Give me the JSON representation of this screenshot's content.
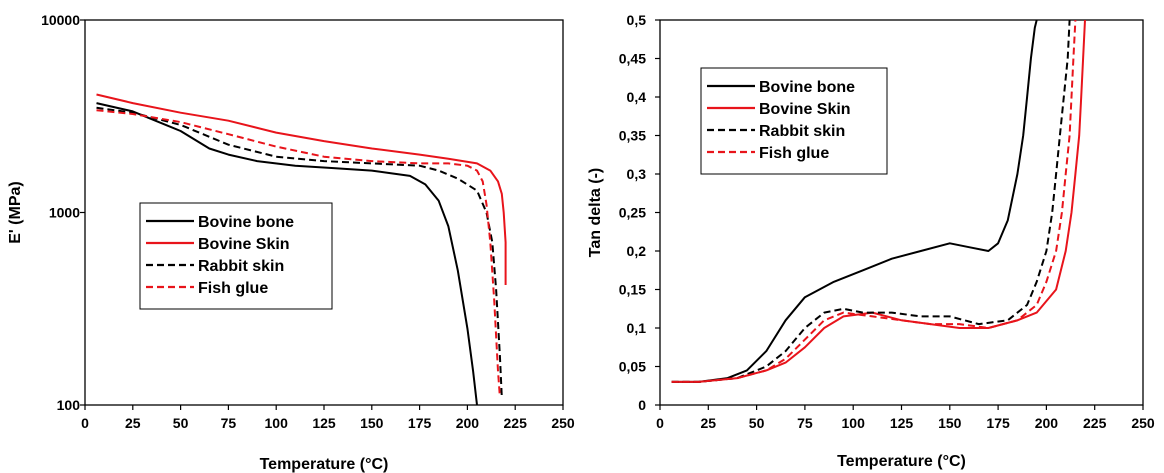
{
  "colors": {
    "black": "#000000",
    "red": "#e8141b"
  },
  "chart_data": [
    {
      "type": "line",
      "xlabel": "Temperature (°C)",
      "ylabel": "E' (MPa)",
      "yscale": "log",
      "xlim": [
        0,
        250
      ],
      "ylim": [
        100,
        10000
      ],
      "xticks": [
        0,
        25,
        50,
        75,
        100,
        125,
        150,
        175,
        200,
        225,
        250
      ],
      "xtick_labels": [
        "0",
        "25",
        "50",
        "75",
        "100",
        "125",
        "150",
        "175",
        "200",
        "225",
        "250"
      ],
      "yticks": [
        100,
        1000,
        10000
      ],
      "ytick_labels": [
        "100",
        "1000",
        "10000"
      ],
      "grid": false,
      "legend_position": "lower-left",
      "series": [
        {
          "name": "Bovine bone",
          "color": "#000000",
          "dash": "solid",
          "x": [
            6,
            25,
            50,
            65,
            75,
            90,
            110,
            130,
            150,
            160,
            170,
            178,
            185,
            190,
            195,
            200,
            203,
            205
          ],
          "y": [
            3700,
            3350,
            2650,
            2150,
            2000,
            1850,
            1750,
            1700,
            1650,
            1600,
            1550,
            1400,
            1150,
            850,
            500,
            250,
            150,
            100
          ]
        },
        {
          "name": "Bovine Skin",
          "color": "#e8141b",
          "dash": "solid",
          "x": [
            6,
            25,
            50,
            75,
            100,
            125,
            150,
            175,
            190,
            205,
            212,
            216,
            218,
            219,
            220,
            220
          ],
          "y": [
            4100,
            3700,
            3300,
            3000,
            2600,
            2350,
            2150,
            2000,
            1900,
            1800,
            1650,
            1450,
            1250,
            1000,
            700,
            420
          ]
        },
        {
          "name": "Rabbit skin",
          "color": "#000000",
          "dash": "dashed",
          "x": [
            6,
            25,
            50,
            75,
            100,
            125,
            150,
            175,
            185,
            195,
            205,
            210,
            213,
            215,
            217,
            218
          ],
          "y": [
            3500,
            3300,
            2850,
            2250,
            1950,
            1850,
            1800,
            1750,
            1650,
            1500,
            1300,
            1000,
            700,
            400,
            180,
            110
          ]
        },
        {
          "name": "Fish glue",
          "color": "#e8141b",
          "dash": "dashed",
          "x": [
            6,
            25,
            50,
            75,
            100,
            125,
            150,
            175,
            190,
            200,
            205,
            208,
            210,
            212,
            214,
            216,
            217
          ],
          "y": [
            3400,
            3250,
            2950,
            2550,
            2200,
            1950,
            1850,
            1800,
            1800,
            1750,
            1650,
            1450,
            1100,
            700,
            350,
            150,
            110
          ]
        }
      ]
    },
    {
      "type": "line",
      "xlabel": "Temperature (°C)",
      "ylabel": "Tan delta (-)",
      "xlim": [
        0,
        250
      ],
      "ylim": [
        0,
        0.5
      ],
      "xticks": [
        0,
        25,
        50,
        75,
        100,
        125,
        150,
        175,
        200,
        225,
        250
      ],
      "xtick_labels": [
        "0",
        "25",
        "50",
        "75",
        "100",
        "125",
        "150",
        "175",
        "200",
        "225",
        "250"
      ],
      "yticks": [
        0,
        0.05,
        0.1,
        0.15,
        0.2,
        0.25,
        0.3,
        0.35,
        0.4,
        0.45,
        0.5
      ],
      "ytick_labels": [
        "0",
        "0,05",
        "0,1",
        "0,15",
        "0,2",
        "0,25",
        "0,3",
        "0,35",
        "0,4",
        "0,45",
        "0,5"
      ],
      "grid": false,
      "legend_position": "top-left",
      "series": [
        {
          "name": "Bovine bone",
          "color": "#000000",
          "dash": "solid",
          "x": [
            6,
            20,
            35,
            45,
            55,
            65,
            75,
            90,
            105,
            120,
            135,
            150,
            160,
            170,
            175,
            180,
            185,
            188,
            190,
            192,
            194,
            195
          ],
          "y": [
            0.03,
            0.03,
            0.035,
            0.045,
            0.07,
            0.11,
            0.14,
            0.16,
            0.175,
            0.19,
            0.2,
            0.21,
            0.205,
            0.2,
            0.21,
            0.24,
            0.3,
            0.35,
            0.4,
            0.45,
            0.49,
            0.5
          ]
        },
        {
          "name": "Bovine Skin",
          "color": "#e8141b",
          "dash": "solid",
          "x": [
            6,
            20,
            40,
            55,
            65,
            75,
            85,
            95,
            110,
            125,
            140,
            155,
            170,
            185,
            195,
            205,
            210,
            213,
            215,
            217,
            218,
            219,
            220
          ],
          "y": [
            0.03,
            0.03,
            0.035,
            0.045,
            0.055,
            0.075,
            0.1,
            0.115,
            0.12,
            0.11,
            0.105,
            0.1,
            0.1,
            0.11,
            0.12,
            0.15,
            0.2,
            0.25,
            0.3,
            0.35,
            0.4,
            0.45,
            0.5
          ]
        },
        {
          "name": "Rabbit skin",
          "color": "#000000",
          "dash": "dashed",
          "x": [
            6,
            20,
            40,
            55,
            65,
            75,
            85,
            95,
            105,
            120,
            135,
            150,
            165,
            180,
            190,
            195,
            200,
            203,
            205,
            207,
            209,
            211,
            212
          ],
          "y": [
            0.03,
            0.03,
            0.035,
            0.05,
            0.07,
            0.1,
            0.12,
            0.125,
            0.12,
            0.12,
            0.115,
            0.115,
            0.105,
            0.11,
            0.13,
            0.16,
            0.2,
            0.25,
            0.3,
            0.35,
            0.4,
            0.45,
            0.5
          ]
        },
        {
          "name": "Fish glue",
          "color": "#e8141b",
          "dash": "dashed",
          "x": [
            6,
            20,
            40,
            55,
            65,
            75,
            85,
            95,
            110,
            125,
            140,
            155,
            170,
            185,
            195,
            200,
            205,
            208,
            210,
            212,
            214,
            215
          ],
          "y": [
            0.03,
            0.03,
            0.035,
            0.045,
            0.06,
            0.085,
            0.11,
            0.12,
            0.115,
            0.11,
            0.105,
            0.105,
            0.1,
            0.11,
            0.13,
            0.16,
            0.2,
            0.25,
            0.3,
            0.35,
            0.45,
            0.5
          ]
        }
      ]
    }
  ]
}
